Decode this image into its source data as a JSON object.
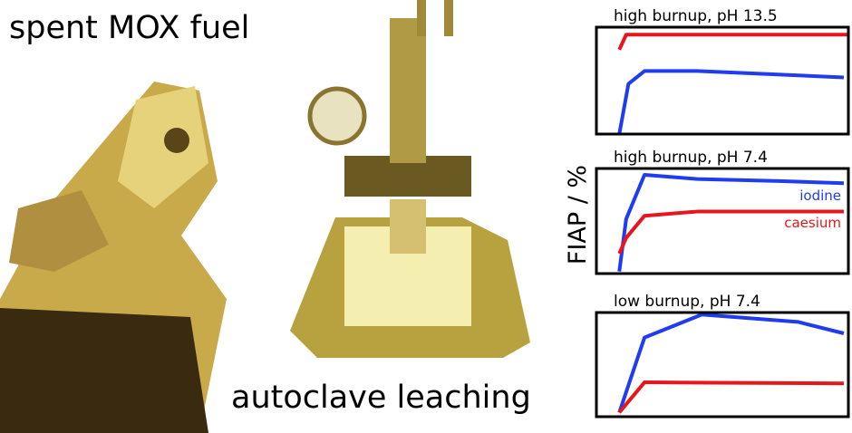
{
  "captions": {
    "left": "spent MOX fuel",
    "center": "autoclave leaching"
  },
  "y_label": "FIAP / %",
  "chart_data": [
    {
      "type": "line",
      "title": "high burnup, pH 13.5",
      "xlim": [
        -10,
        100
      ],
      "ylim": [
        0,
        100
      ],
      "series": [
        {
          "color": "#e8161b",
          "x": [
            0,
            3,
            100
          ],
          "values": [
            79,
            93,
            93
          ]
        },
        {
          "color": "#1f3cf0",
          "x": [
            0,
            4,
            11,
            34,
            98
          ],
          "values": [
            0,
            47,
            59,
            59,
            53
          ]
        }
      ]
    },
    {
      "type": "line",
      "title": "high burnup, pH 7.4",
      "xlim": [
        -10,
        100
      ],
      "ylim": [
        0,
        100
      ],
      "series": [
        {
          "name": "iodine",
          "color": "#1f3cf0",
          "x": [
            0,
            3,
            11,
            34,
            70,
            98
          ],
          "values": [
            2,
            52,
            94,
            90,
            88,
            86
          ]
        },
        {
          "name": "caesium",
          "color": "#e8161b",
          "x": [
            0,
            3,
            11,
            34,
            98
          ],
          "values": [
            19,
            34,
            55,
            59,
            59
          ]
        }
      ]
    },
    {
      "type": "line",
      "title": "low burnup, pH 7.4",
      "xlim": [
        -10,
        100
      ],
      "ylim": [
        0,
        100
      ],
      "series": [
        {
          "color": "#1f3cf0",
          "x": [
            0,
            11,
            36,
            78,
            98
          ],
          "values": [
            4,
            76,
            98,
            91,
            80
          ]
        },
        {
          "color": "#e8161b",
          "x": [
            0,
            11,
            98
          ],
          "values": [
            4,
            33,
            32
          ]
        }
      ]
    }
  ]
}
